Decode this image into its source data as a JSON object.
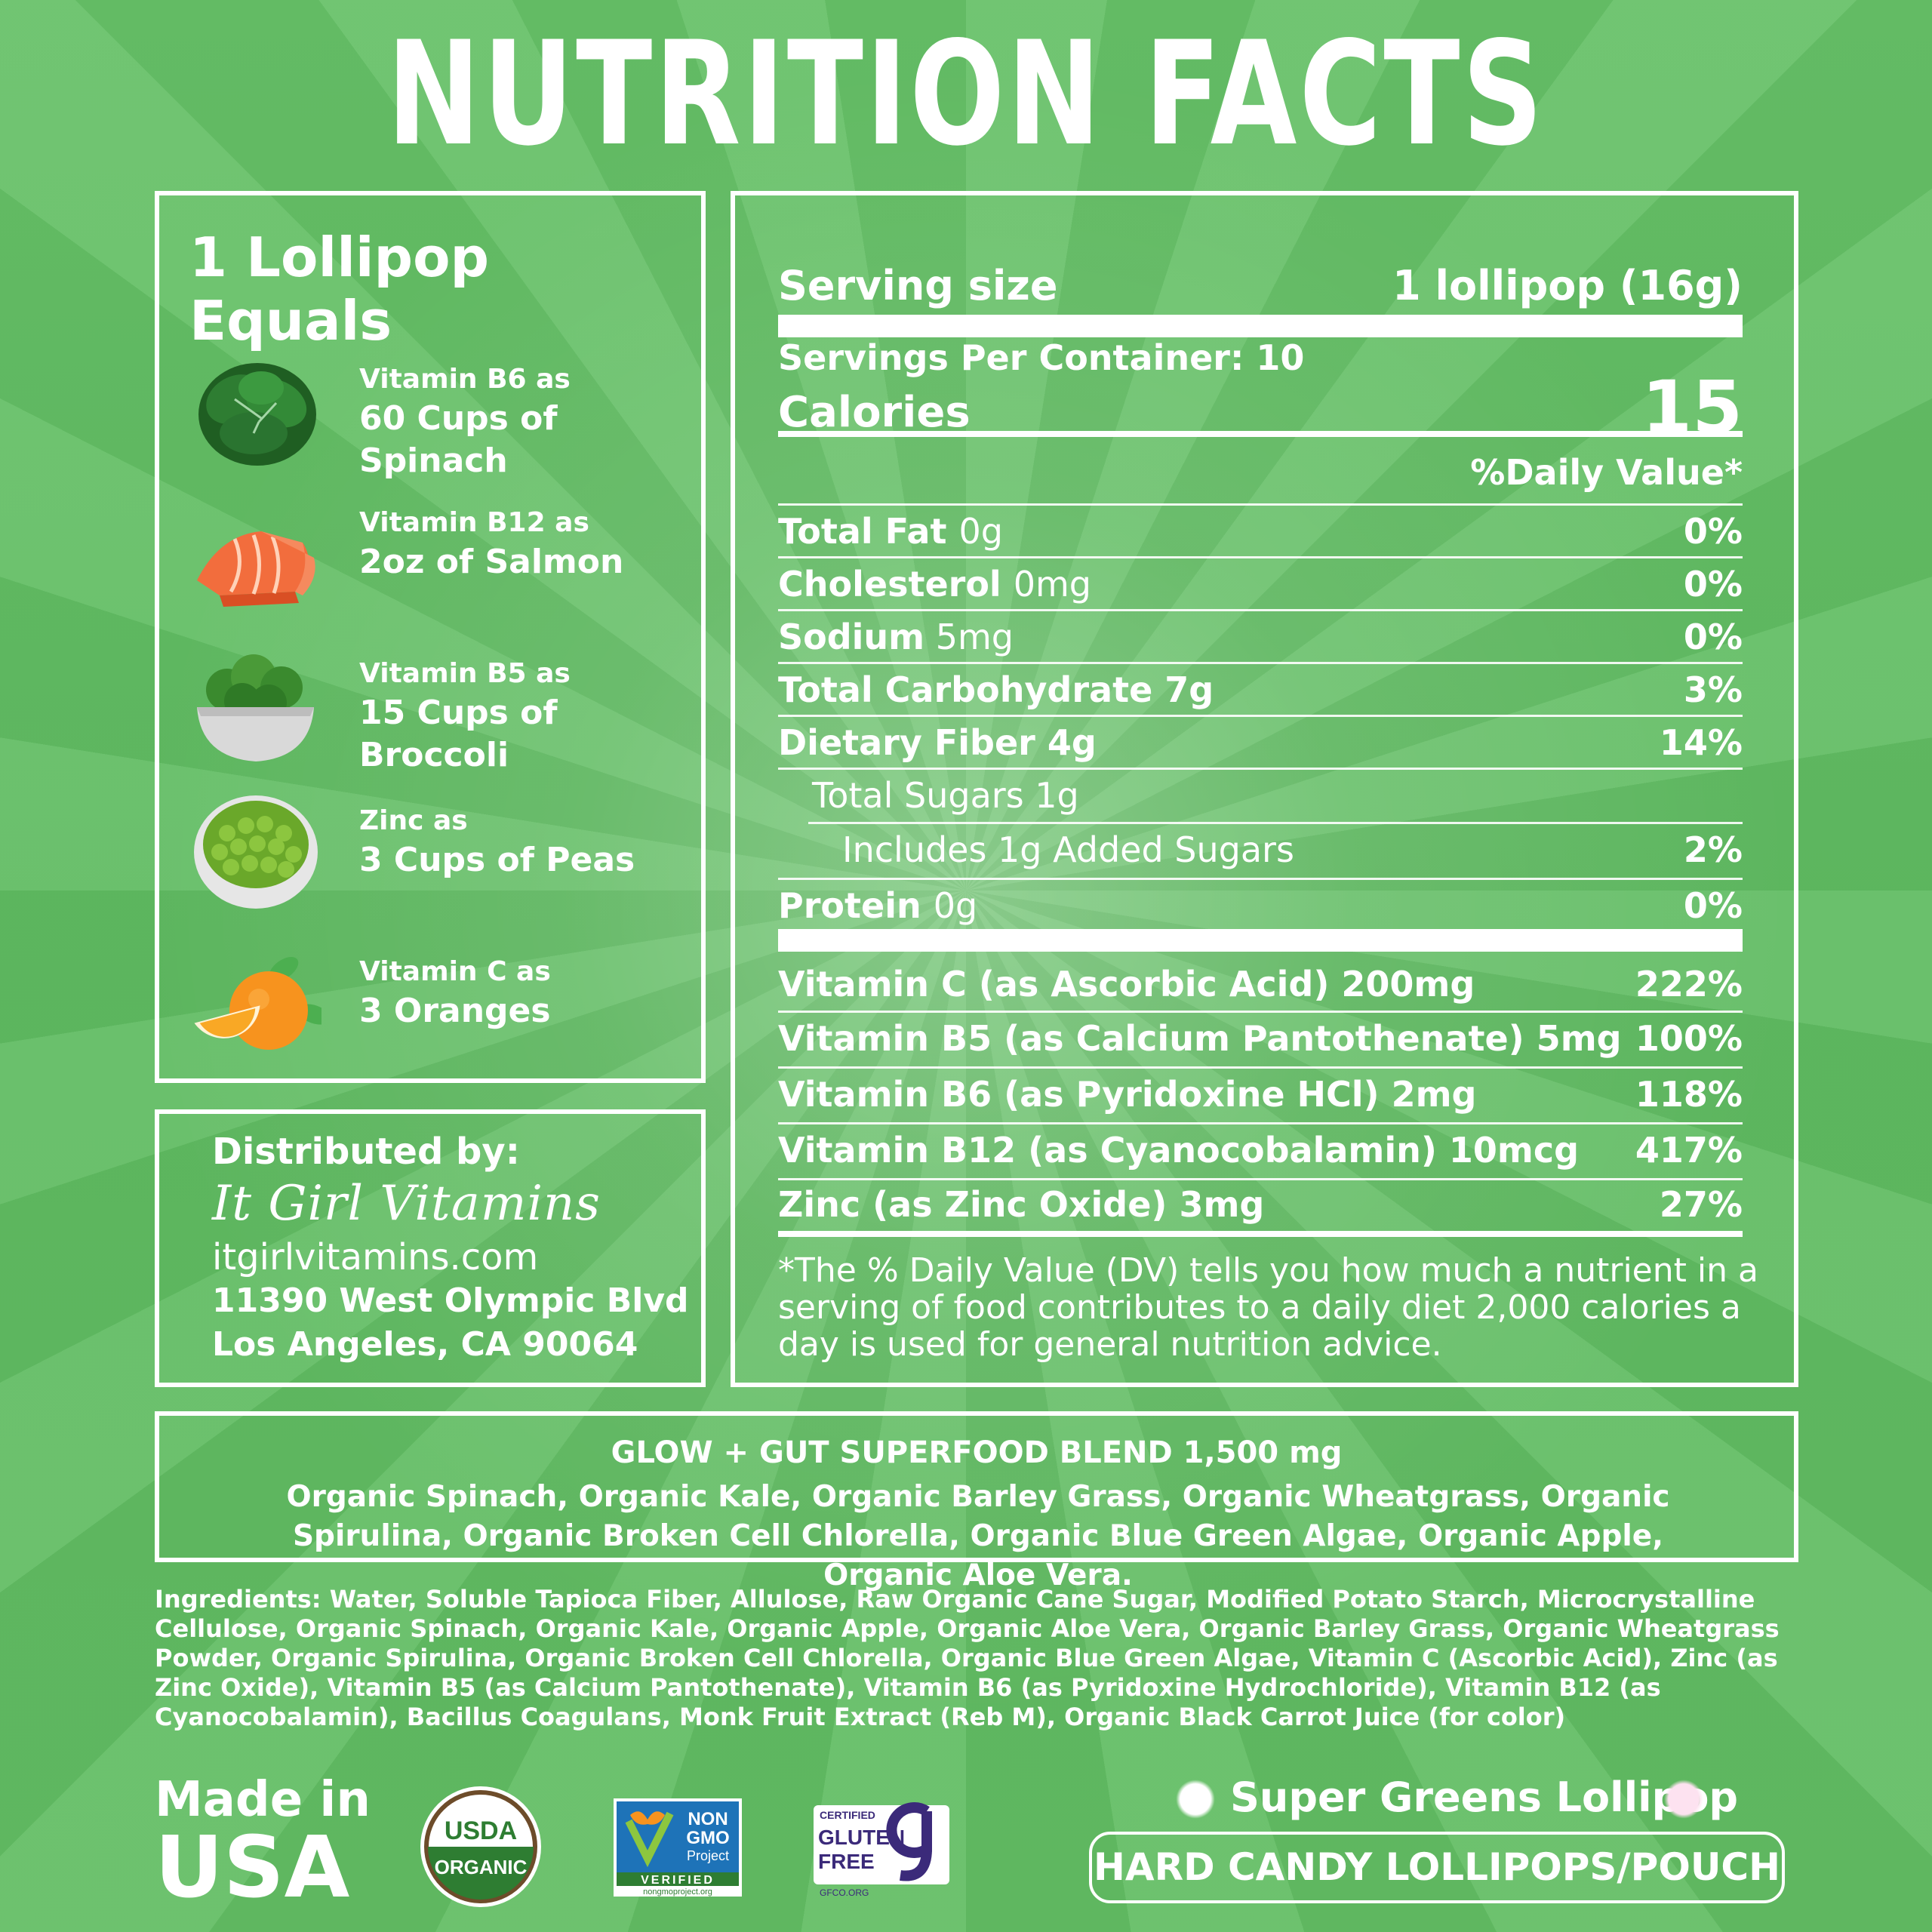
{
  "title": "NUTRITION FACTS",
  "equals": {
    "heading": "1 Lollipop Equals",
    "items": [
      {
        "small": "Vitamin B6 as",
        "big": "60 Cups of Spinach",
        "icon": "spinach-icon"
      },
      {
        "small": "Vitamin B12 as",
        "big": "2oz of Salmon",
        "icon": "salmon-icon"
      },
      {
        "small": "Vitamin B5 as",
        "big": "15 Cups of Broccoli",
        "icon": "broccoli-icon"
      },
      {
        "small": "Zinc as",
        "big": "3 Cups of Peas",
        "icon": "peas-icon"
      },
      {
        "small": "Vitamin C as",
        "big": "3 Oranges",
        "icon": "orange-icon"
      }
    ]
  },
  "distributor": {
    "label": "Distributed by:",
    "brand": "It Girl Vitamins",
    "website": "itgirlvitamins.com",
    "address1": "11390 West Olympic Blvd",
    "address2": "Los Angeles, CA 90064"
  },
  "facts": {
    "serving_size_label": "Serving size",
    "serving_size_value": "1 lollipop (16g)",
    "servings_per_container": "Servings Per Container: 10",
    "calories_label": "Calories",
    "calories_value": "15",
    "dv_header": "%Daily Value*",
    "nutrients": [
      {
        "label": "Total Fat",
        "amount": "0g",
        "dv": "0%"
      },
      {
        "label": "Cholesterol",
        "amount": "0mg",
        "dv": "0%"
      },
      {
        "label": "Sodium",
        "amount": " 5mg",
        "dv": "0%"
      },
      {
        "label": "Total Carbohydrate 7g",
        "amount": "",
        "dv": "3%"
      },
      {
        "label": "Dietary Fiber 4g",
        "amount": "",
        "dv": "14%"
      },
      {
        "label": "Total Sugars",
        "amount": " 1g",
        "dv": ""
      },
      {
        "label": "",
        "amount": "Includes 1g Added Sugars",
        "dv": "2%"
      },
      {
        "label": "Protein",
        "amount": "0g",
        "dv": "0%"
      }
    ],
    "vitamins": [
      {
        "label": "Vitamin C (as Ascorbic Acid) 200mg",
        "dv": "222%"
      },
      {
        "label": "Vitamin B5 (as Calcium Pantothenate) 5mg",
        "dv": "100%"
      },
      {
        "label": "Vitamin B6 (as Pyridoxine HCl) 2mg",
        "dv": "118%"
      },
      {
        "label": "Vitamin B12 (as Cyanocobalamin) 10mcg",
        "dv": "417%"
      },
      {
        "label": "Zinc (as Zinc Oxide) 3mg",
        "dv": "27%"
      }
    ],
    "footnote": "*The % Daily Value (DV) tells you how much a nutrient in a serving of food contributes to a daily diet 2,000 calories a day is used for general nutrition advice."
  },
  "blend": {
    "title": "GLOW + GUT SUPERFOOD BLEND 1,500 mg",
    "text": "Organic Spinach, Organic Kale, Organic Barley Grass, Organic Wheatgrass, Organic Spirulina, Organic Broken Cell Chlorella, Organic Blue Green Algae, Organic Apple, Organic Aloe Vera."
  },
  "ingredients": "Ingredients: Water, Soluble Tapioca Fiber, Allulose, Raw Organic Cane Sugar, Modified Potato Starch, Microcrystalline Cellulose, Organic Spinach, Organic Kale, Organic Apple, Organic Aloe Vera, Organic Barley Grass, Organic Wheatgrass Powder, Organic Spirulina, Organic Broken Cell Chlorella, Organic Blue Green Algae, Vitamin C (Ascorbic Acid), Zinc (as Zinc Oxide), Vitamin B5 (as Calcium Pantothenate), Vitamin B6 (as Pyridoxine Hydrochloride), Vitamin B12 (as Cyanocobalamin), Bacillus Coagulans, Monk Fruit Extract (Reb M), Organic Black Carrot Juice (for color)",
  "footer": {
    "made_line1": "Made in",
    "made_line2": "USA",
    "usda_top": "USDA",
    "usda_bottom": "ORGANIC",
    "nongmo_l1": "NON",
    "nongmo_l2": "GMO",
    "nongmo_l3": "Project",
    "nongmo_verified": "VERIFIED",
    "nongmo_url": "nongmoproject.org",
    "gf_certified": "CERTIFIED",
    "gf_l1": "GLUTEN",
    "gf_l2": "FREE",
    "gf_org": "GFCO.ORG",
    "product_name": "Super Greens Lollipop",
    "product_type": "HARD CANDY LOLLIPOPS/POUCH"
  },
  "colors": {
    "background": "#5fbb61",
    "usda_green": "#2e7d32",
    "usda_brown": "#6d4c2a",
    "nongmo_blue": "#1e73b8",
    "gf_purple": "#3b2a7a"
  }
}
